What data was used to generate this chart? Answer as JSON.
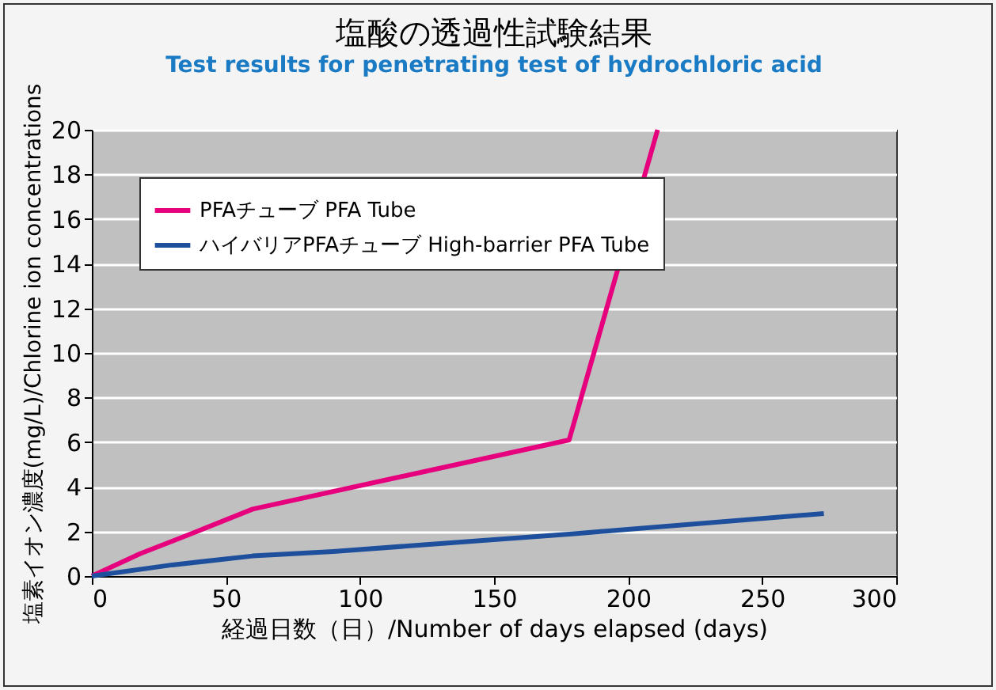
{
  "chart_data": {
    "type": "line",
    "title": "塩酸の透過性試験結果",
    "subtitle": "Test results for penetrating test of hydrochloric acid",
    "xlabel": "経過日数（日）/Number of days elapsed (days)",
    "ylabel": "塩素イオン濃度(mg/L)/Chlorine ion concentrations",
    "series": [
      {
        "name": "PFAチューブ PFA Tube",
        "color": "#e6007e",
        "x": [
          0,
          18,
          35,
          60,
          178,
          211
        ],
        "values": [
          0,
          1,
          1.8,
          3,
          6.1,
          20
        ]
      },
      {
        "name": "ハイバリアPFAチューブ High-barrier PFA Tube",
        "color": "#1d4f9c",
        "x": [
          0,
          30,
          60,
          90,
          180,
          273
        ],
        "values": [
          0,
          0.5,
          0.9,
          1.1,
          1.9,
          2.8
        ]
      }
    ],
    "xlim": [
      0,
      300
    ],
    "xticks": [
      0,
      50,
      100,
      150,
      200,
      250,
      300
    ],
    "ylim": [
      0,
      20
    ],
    "yticks": [
      0,
      2,
      4,
      6,
      8,
      10,
      12,
      14,
      16,
      18,
      20
    ],
    "grid": "y",
    "legend": "top left",
    "marker": "none",
    "line_style": "solid"
  }
}
